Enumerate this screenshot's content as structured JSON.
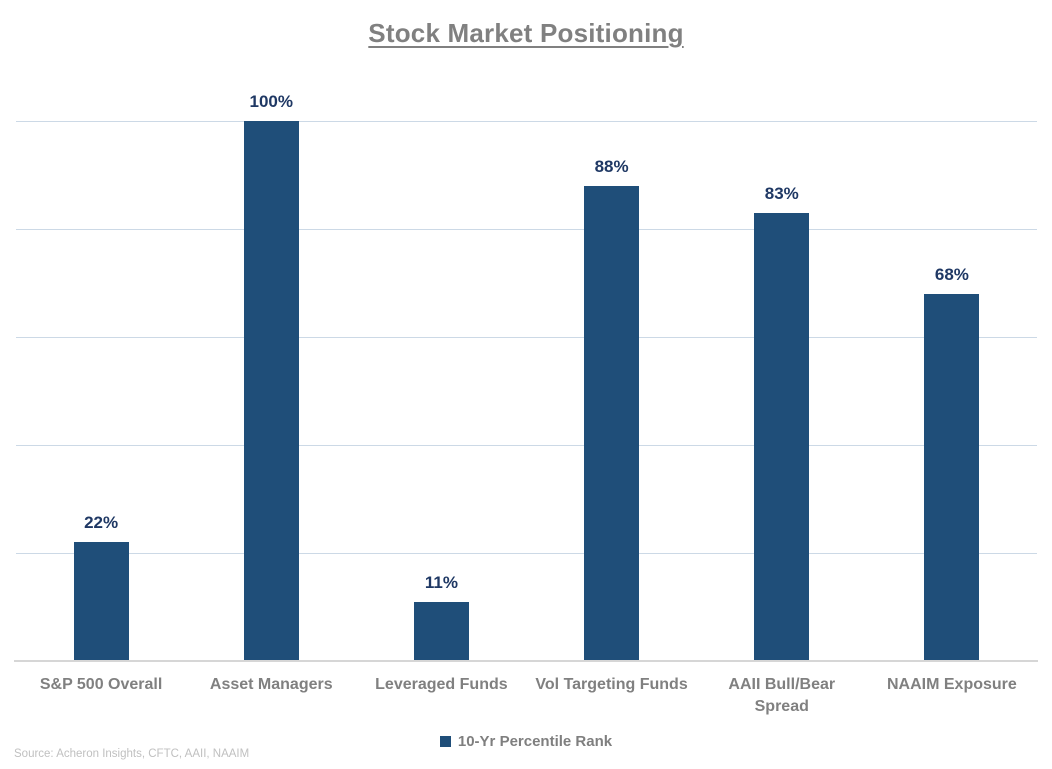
{
  "title": "Stock Market Positioning",
  "legend": {
    "label": "10-Yr Percentile Rank",
    "swatch_color": "#1f4e79"
  },
  "source": "Source: Acheron Insights, CFTC, AAII, NAAIM",
  "colors": {
    "bar": "#1f4e79",
    "value_label": "#1f3864",
    "gridline": "#ccd9e6",
    "axis_line": "#d6d6d6",
    "title_text": "#808080",
    "category_text": "#808080",
    "source_text": "#c0c0c0"
  },
  "chart_data": {
    "type": "bar",
    "title": "Stock Market Positioning",
    "categories": [
      "S&P 500 Overall",
      "Asset Managers",
      "Leveraged Funds",
      "Vol Targeting Funds",
      "AAII Bull/Bear Spread",
      "NAAIM Exposure"
    ],
    "values": [
      22,
      100,
      11,
      88,
      83,
      68
    ],
    "value_labels": [
      "22%",
      "100%",
      "11%",
      "88%",
      "83%",
      "68%"
    ],
    "xlabel": "",
    "ylabel": "",
    "ylim": [
      0,
      100
    ],
    "gridlines_pct": [
      20,
      40,
      60,
      80,
      100
    ],
    "grid": true,
    "y_axis_tick_labels_visible": false,
    "legend_entries": [
      "10-Yr Percentile Rank"
    ],
    "legend_position": "bottom-center",
    "series": [
      {
        "name": "10-Yr Percentile Rank",
        "values": [
          22,
          100,
          11,
          88,
          83,
          68
        ]
      }
    ]
  }
}
